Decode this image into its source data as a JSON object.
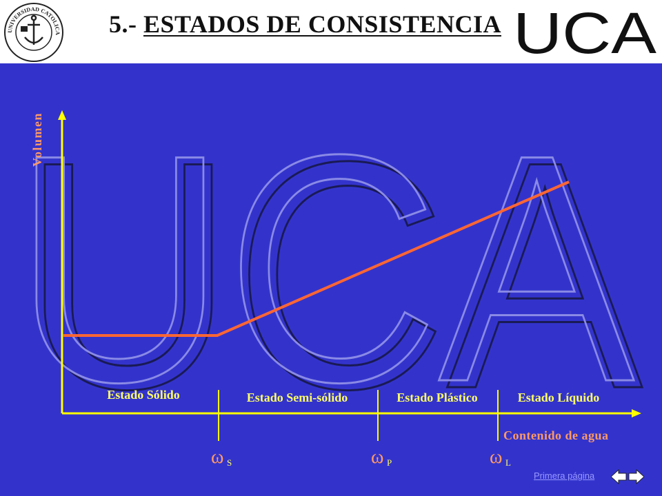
{
  "slide": {
    "title_prefix": "5.- ",
    "title_underlined": "ESTADOS DE CONSISTENCIA",
    "brand_text": "UCA",
    "watermark_text": "UCA",
    "seal_text": "UNIVERSIDAD CATOLICA ARGENTINA"
  },
  "diagram": {
    "y_axis_label": "Volumen",
    "x_axis_label": "Contenido de agua",
    "states": [
      "Estado Sólido",
      "Estado Semi-sólido",
      "Estado Plástico",
      "Estado Líquido"
    ],
    "limits": [
      {
        "symbol": "ω",
        "subscript": "S"
      },
      {
        "symbol": "ω",
        "subscript": "P"
      },
      {
        "symbol": "ω",
        "subscript": "L"
      }
    ],
    "colors": {
      "background": "#3333cc",
      "axis": "#ffff00",
      "curve": "#ff6633",
      "state_text": "#ffff66",
      "axis_label": "#ff9966",
      "limit_symbol": "#ff9966",
      "limit_subscript": "#ffff66"
    }
  },
  "footer": {
    "first_page_link": "Primera página",
    "prev_icon": "left-arrow-icon",
    "next_icon": "right-arrow-icon"
  }
}
